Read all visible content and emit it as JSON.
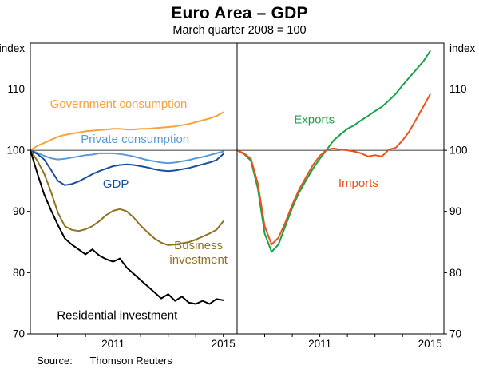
{
  "source": {
    "label": "Source:",
    "value": "Thomson Reuters"
  },
  "chart_data": {
    "type": "line",
    "title": "Euro Area – GDP",
    "subtitle": "March quarter 2008 = 100",
    "unit_label": "index",
    "ylabel": "index",
    "xlabel": "",
    "ylim": [
      70,
      117.5
    ],
    "xlim": [
      2008,
      2015.5
    ],
    "yticks": [
      70,
      80,
      90,
      100,
      110
    ],
    "year_ticks": [
      2009,
      2010,
      2011,
      2012,
      2013,
      2014,
      2015
    ],
    "xtick_labels": [
      {
        "label": "2011",
        "x": 2011
      },
      {
        "label": "2015",
        "x": 2015
      }
    ],
    "reference_line": 100,
    "x": [
      2008,
      2008.25,
      2008.5,
      2008.75,
      2009,
      2009.25,
      2009.5,
      2009.75,
      2010,
      2010.25,
      2010.5,
      2010.75,
      2011,
      2011.25,
      2011.5,
      2011.75,
      2012,
      2012.25,
      2012.5,
      2012.75,
      2013,
      2013.25,
      2013.5,
      2013.75,
      2014,
      2014.25,
      2014.5,
      2014.75,
      2015
    ],
    "panels": [
      {
        "name": "left",
        "series": [
          {
            "id": "government-consumption",
            "name": "Government consumption",
            "color": "#F9A13A",
            "values": [
              100,
              100.7,
              101.2,
              101.7,
              102.2,
              102.5,
              102.7,
              102.9,
              103.1,
              103.2,
              103.3,
              103.4,
              103.5,
              103.5,
              103.4,
              103.4,
              103.5,
              103.5,
              103.6,
              103.7,
              103.8,
              103.9,
              104.1,
              104.3,
              104.6,
              104.9,
              105.2,
              105.6,
              106.2
            ]
          },
          {
            "id": "private-consumption",
            "name": "Private consumption",
            "color": "#5B9BD5",
            "values": [
              100,
              99.6,
              99.1,
              98.7,
              98.5,
              98.6,
              98.8,
              99.0,
              99.2,
              99.3,
              99.5,
              99.5,
              99.5,
              99.4,
              99.2,
              99.0,
              98.7,
              98.4,
              98.2,
              98.0,
              97.9,
              98.0,
              98.2,
              98.4,
              98.7,
              98.9,
              99.2,
              99.5,
              99.8
            ]
          },
          {
            "id": "gdp",
            "name": "GDP",
            "color": "#1A4F9C",
            "values": [
              100,
              99.4,
              98.5,
              96.8,
              95.0,
              94.3,
              94.5,
              94.9,
              95.5,
              96.1,
              96.6,
              97.0,
              97.4,
              97.6,
              97.7,
              97.6,
              97.4,
              97.2,
              96.9,
              96.7,
              96.6,
              96.7,
              96.9,
              97.1,
              97.4,
              97.7,
              98.0,
              98.4,
              99.4
            ]
          },
          {
            "id": "business-investment",
            "name": "Business investment",
            "color": "#8E7420",
            "values": [
              100,
              98.3,
              96.2,
              93.2,
              89.8,
              87.6,
              87.0,
              86.8,
              87.1,
              87.6,
              88.4,
              89.4,
              90.1,
              90.4,
              90.0,
              89.0,
              87.7,
              86.6,
              85.6,
              84.9,
              84.5,
              84.6,
              84.8,
              85.0,
              85.4,
              85.9,
              86.4,
              87.0,
              88.4
            ]
          },
          {
            "id": "residential-investment",
            "name": "Residential investment",
            "color": "#000000",
            "values": [
              100,
              96.3,
              92.8,
              90.2,
              87.8,
              85.6,
              84.6,
              83.8,
              83.0,
              83.8,
              82.8,
              82.2,
              81.8,
              82.3,
              80.8,
              79.8,
              78.8,
              77.8,
              76.8,
              75.8,
              76.5,
              75.4,
              76.1,
              75.1,
              74.9,
              75.4,
              74.9,
              75.7,
              75.5
            ]
          }
        ],
        "annotations": [
          {
            "id": "government-consumption-label",
            "lines": [
              "Government consumption"
            ],
            "x": 2011.2,
            "y": 106.9,
            "color": "#F9A13A"
          },
          {
            "id": "private-consumption-label",
            "lines": [
              "Private consumption"
            ],
            "x": 2011.8,
            "y": 101.2,
            "color": "#5B9BD5"
          },
          {
            "id": "gdp-label",
            "lines": [
              "GDP"
            ],
            "x": 2011.1,
            "y": 93.9,
            "color": "#1A4F9C"
          },
          {
            "id": "business-investment-label",
            "lines": [
              "Business",
              "investment"
            ],
            "x": 2014.1,
            "y": 83.8,
            "color": "#8E7420"
          },
          {
            "id": "residential-investment-label",
            "lines": [
              "Residential investment"
            ],
            "x": 2011.15,
            "y": 72.4,
            "color": "#000000"
          }
        ]
      },
      {
        "name": "right",
        "series": [
          {
            "id": "exports",
            "name": "Exports",
            "color": "#16A348",
            "values": [
              100,
              99.4,
              98.3,
              93.8,
              86.4,
              83.4,
              84.6,
              87.6,
              90.6,
              93.1,
              95.1,
              97.0,
              98.6,
              100.1,
              101.6,
              102.6,
              103.5,
              104.1,
              104.9,
              105.6,
              106.4,
              107.1,
              108.1,
              109.2,
              110.6,
              111.9,
              113.2,
              114.5,
              116.2
            ]
          },
          {
            "id": "imports",
            "name": "Imports",
            "color": "#E8541E",
            "values": [
              100,
              99.5,
              98.6,
              94.6,
              87.6,
              84.6,
              85.7,
              88.2,
              91.1,
              93.6,
              95.6,
              97.6,
              99.1,
              100.1,
              100.3,
              100.1,
              100.0,
              99.8,
              99.5,
              99.0,
              99.2,
              99.0,
              100.1,
              100.4,
              101.6,
              103.1,
              105.1,
              107.1,
              109.1
            ]
          }
        ],
        "annotations": [
          {
            "id": "exports-label",
            "lines": [
              "Exports"
            ],
            "x": 2010.8,
            "y": 104.4,
            "color": "#16A348"
          },
          {
            "id": "imports-label",
            "lines": [
              "Imports"
            ],
            "x": 2012.4,
            "y": 94.0,
            "color": "#E8541E"
          }
        ]
      }
    ]
  }
}
